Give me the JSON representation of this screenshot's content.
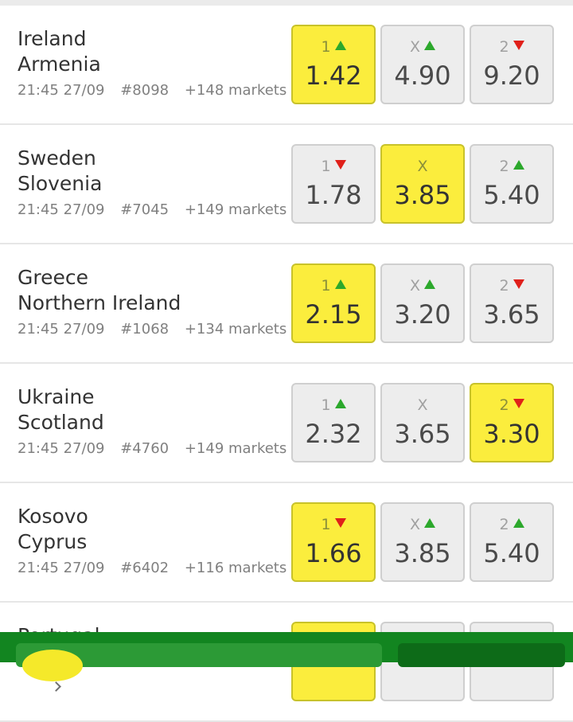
{
  "matches": [
    {
      "team1": "Ireland",
      "team2": "Armenia",
      "time": "21:45 27/09",
      "code": "#8098",
      "markets": "+148 markets",
      "odds": [
        {
          "label": "1",
          "value": "1.42",
          "trend": "up"
        },
        {
          "label": "X",
          "value": "4.90",
          "trend": "up"
        },
        {
          "label": "2",
          "value": "9.20",
          "trend": "down"
        }
      ],
      "selected": 0
    },
    {
      "team1": "Sweden",
      "team2": "Slovenia",
      "time": "21:45 27/09",
      "code": "#7045",
      "markets": "+149 markets",
      "odds": [
        {
          "label": "1",
          "value": "1.78",
          "trend": "down"
        },
        {
          "label": "X",
          "value": "3.85",
          "trend": ""
        },
        {
          "label": "2",
          "value": "5.40",
          "trend": "up"
        }
      ],
      "selected": 1
    },
    {
      "team1": "Greece",
      "team2": "Northern Ireland",
      "time": "21:45 27/09",
      "code": "#1068",
      "markets": "+134 markets",
      "odds": [
        {
          "label": "1",
          "value": "2.15",
          "trend": "up"
        },
        {
          "label": "X",
          "value": "3.20",
          "trend": "up"
        },
        {
          "label": "2",
          "value": "3.65",
          "trend": "down"
        }
      ],
      "selected": 0
    },
    {
      "team1": "Ukraine",
      "team2": "Scotland",
      "time": "21:45 27/09",
      "code": "#4760",
      "markets": "+149 markets",
      "odds": [
        {
          "label": "1",
          "value": "2.32",
          "trend": "up"
        },
        {
          "label": "X",
          "value": "3.65",
          "trend": ""
        },
        {
          "label": "2",
          "value": "3.30",
          "trend": "down"
        }
      ],
      "selected": 2
    },
    {
      "team1": "Kosovo",
      "team2": "Cyprus",
      "time": "21:45 27/09",
      "code": "#6402",
      "markets": "+116 markets",
      "odds": [
        {
          "label": "1",
          "value": "1.66",
          "trend": "down"
        },
        {
          "label": "X",
          "value": "3.85",
          "trend": "up"
        },
        {
          "label": "2",
          "value": "5.40",
          "trend": "up"
        }
      ],
      "selected": 0
    },
    {
      "team1": "Portugal",
      "team2": "",
      "time": "",
      "code": "",
      "markets": "",
      "odds": [
        {
          "label": "",
          "value": "",
          "trend": ""
        },
        {
          "label": "",
          "value": "",
          "trend": ""
        },
        {
          "label": "",
          "value": "",
          "trend": ""
        }
      ],
      "selected": 0
    }
  ],
  "colors": {
    "selected": "#fbed3d",
    "up": "#2ca82c",
    "down": "#e0201a",
    "bottom_bar": "#128520"
  },
  "icons": {
    "trend_up": "triangle-up-icon",
    "trend_down": "triangle-down-icon",
    "markets": "chevron-right-icon"
  }
}
